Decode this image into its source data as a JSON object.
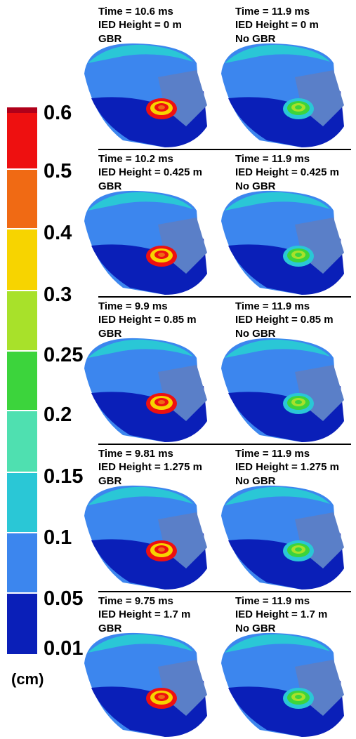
{
  "colorbar": {
    "labels": [
      0.6,
      0.5,
      0.4,
      0.3,
      0.25,
      0.2,
      0.15,
      0.1,
      0.05,
      0.01
    ],
    "unit": "(cm)"
  },
  "panels": [
    [
      {
        "time": "Time = 10.6 ms",
        "height": "IED Height = 0 m",
        "condition": "GBR"
      },
      {
        "time": "Time = 11.9 ms",
        "height": "IED Height = 0 m",
        "condition": "No GBR"
      }
    ],
    [
      {
        "time": "Time = 10.2 ms",
        "height": "IED Height = 0.425 m",
        "condition": "GBR"
      },
      {
        "time": "Time = 11.9 ms",
        "height": "IED Height = 0.425 m",
        "condition": "No GBR"
      }
    ],
    [
      {
        "time": "Time = 9.9 ms",
        "height": "IED Height = 0.85 m",
        "condition": "GBR"
      },
      {
        "time": "Time = 11.9 ms",
        "height": "IED Height = 0.85 m",
        "condition": "No GBR"
      }
    ],
    [
      {
        "time": "Time = 9.81 ms",
        "height": "IED Height = 1.275 m",
        "condition": "GBR"
      },
      {
        "time": "Time = 11.9 ms",
        "height": "IED Height = 1.275 m",
        "condition": "No GBR"
      }
    ],
    [
      {
        "time": "Time = 9.75 ms",
        "height": "IED Height = 1.7 m",
        "condition": "GBR"
      },
      {
        "time": "Time = 11.9 ms",
        "height": "IED Height = 1.7 m",
        "condition": "No GBR"
      }
    ]
  ]
}
